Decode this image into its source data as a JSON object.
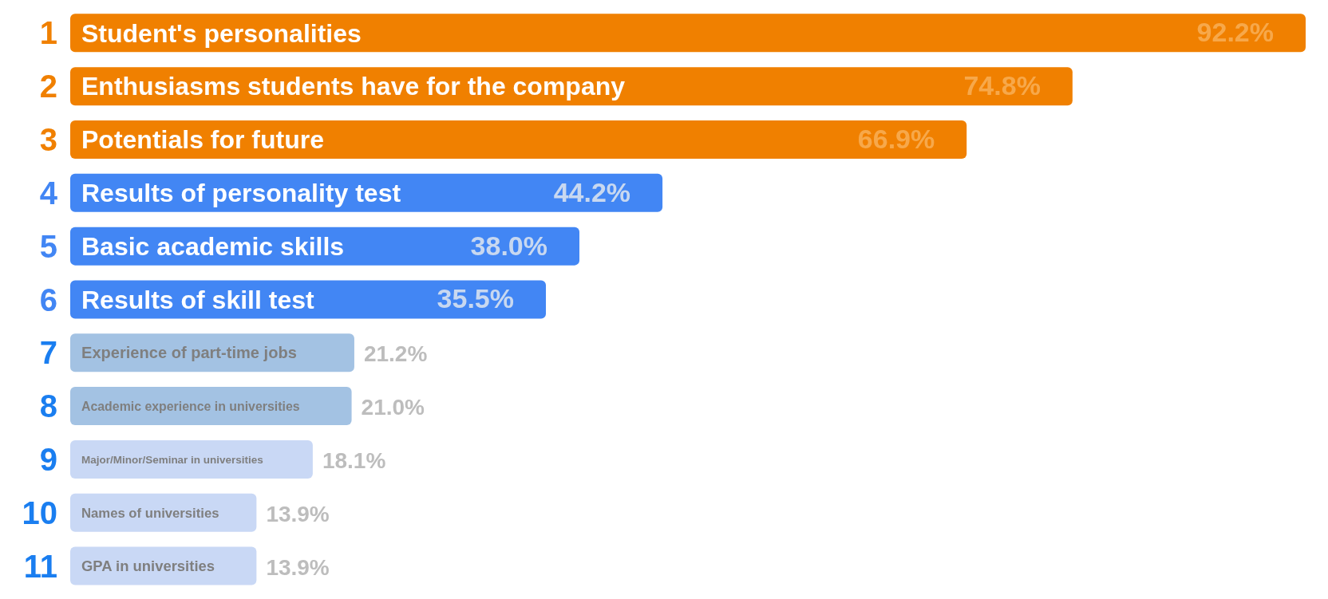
{
  "chart_data": {
    "type": "bar",
    "orientation": "horizontal",
    "categories": [
      "Student's personalities",
      "Enthusiasms students have for the company",
      "Potentials for future",
      "Results of personality test",
      "Basic academic skills",
      "Results of skill test",
      "Experience of part-time jobs",
      "Academic experience in universities",
      "Major/Minor/Seminar in universities",
      "Names of universities",
      "GPA in universities"
    ],
    "values": [
      92.2,
      74.8,
      66.9,
      44.2,
      38.0,
      35.5,
      21.2,
      21.0,
      18.1,
      13.9,
      13.9
    ],
    "value_labels": [
      "92.2%",
      "74.8%",
      "66.9%",
      "44.2%",
      "38.0%",
      "35.5%",
      "21.2%",
      "21.0%",
      "18.1%",
      "13.9%",
      "13.9%"
    ],
    "colors": [
      "#f08000",
      "#f08000",
      "#f08000",
      "#4286f4",
      "#4286f4",
      "#4286f4",
      "#a3c2e3",
      "#a3c2e3",
      "#c9d8f5",
      "#c9d8f5",
      "#c9d8f5"
    ],
    "annotations": [
      "1",
      "2",
      "3",
      "4",
      "5",
      "6",
      "7",
      "8",
      "9",
      "10",
      "11"
    ]
  }
}
